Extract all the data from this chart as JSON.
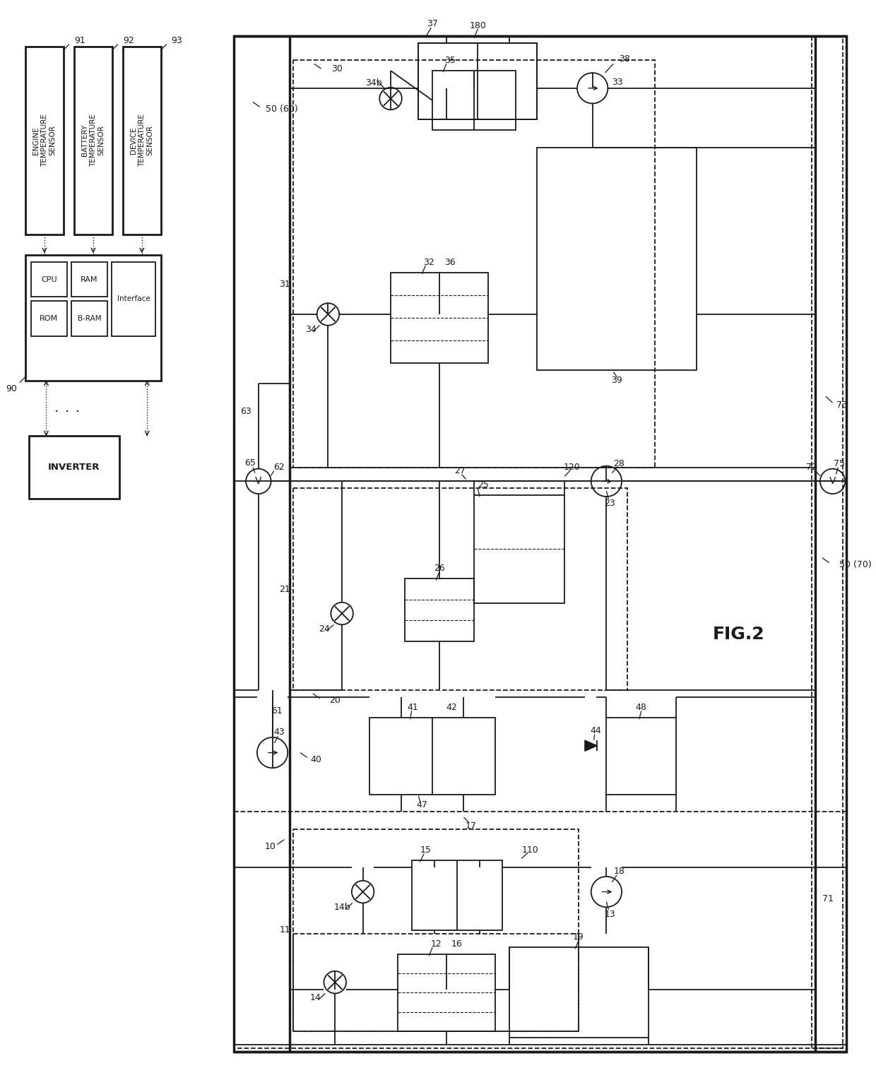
{
  "bg_color": "#ffffff",
  "lc": "#1a1a1a",
  "figsize": [
    12.4,
    15.46
  ],
  "dpi": 100,
  "title": "FIG.2",
  "sensors": [
    {
      "label": "ENGINE TEMPERATURE SENSOR",
      "ref": "91"
    },
    {
      "label": "BATTERY TEMPERATURE SENSOR",
      "ref": "92"
    },
    {
      "label": "DEVICE TEMPERATURE SENSOR",
      "ref": "93"
    }
  ],
  "cpu_inner": [
    "CPU",
    "RAM",
    "ROM",
    "B-RAM",
    "Interface"
  ],
  "inverter_label": "INVERTER",
  "cpu_ref": "90"
}
